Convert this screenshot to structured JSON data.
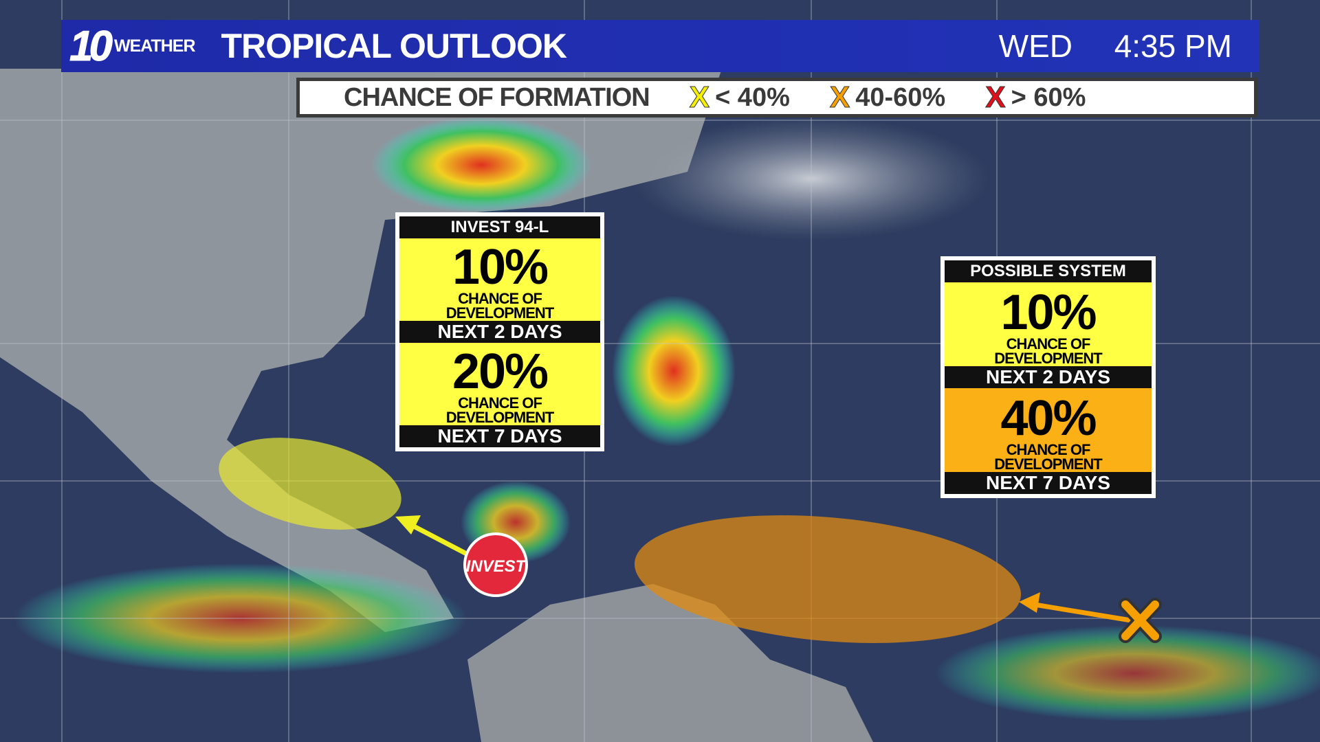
{
  "header": {
    "logo_number": "10",
    "logo_text": "WEATHER",
    "title": "TROPICAL OUTLOOK",
    "day": "WED",
    "time": "4:35 PM"
  },
  "legend": {
    "label": "CHANCE OF FORMATION",
    "items": [
      {
        "marker": "X",
        "text": "< 40%",
        "color": "#f5f000"
      },
      {
        "marker": "X",
        "text": "40-60%",
        "color": "#f5a000"
      },
      {
        "marker": "X",
        "text": "> 60%",
        "color": "#e0101a"
      }
    ]
  },
  "systems": [
    {
      "name": "INVEST 94-L",
      "two_day_pct": "10%",
      "two_day_label": "NEXT 2 DAYS",
      "seven_day_pct": "20%",
      "seven_day_label": "NEXT 7 DAYS",
      "chance_line1": "CHANCE OF",
      "chance_line2": "DEVELOPMENT",
      "two_day_color": "#ffff44",
      "seven_day_color": "#ffff44",
      "marker_label": "INVEST",
      "marker_color": "#e2283a",
      "area_color": "#e8e830"
    },
    {
      "name": "POSSIBLE SYSTEM",
      "two_day_pct": "10%",
      "two_day_label": "NEXT 2 DAYS",
      "seven_day_pct": "40%",
      "seven_day_label": "NEXT 7 DAYS",
      "chance_line1": "CHANCE OF",
      "chance_line2": "DEVELOPMENT",
      "two_day_color": "#ffff44",
      "seven_day_color": "#fbb016",
      "marker_label": "X",
      "marker_color": "#f5a000",
      "area_color": "#e08a10"
    }
  ]
}
